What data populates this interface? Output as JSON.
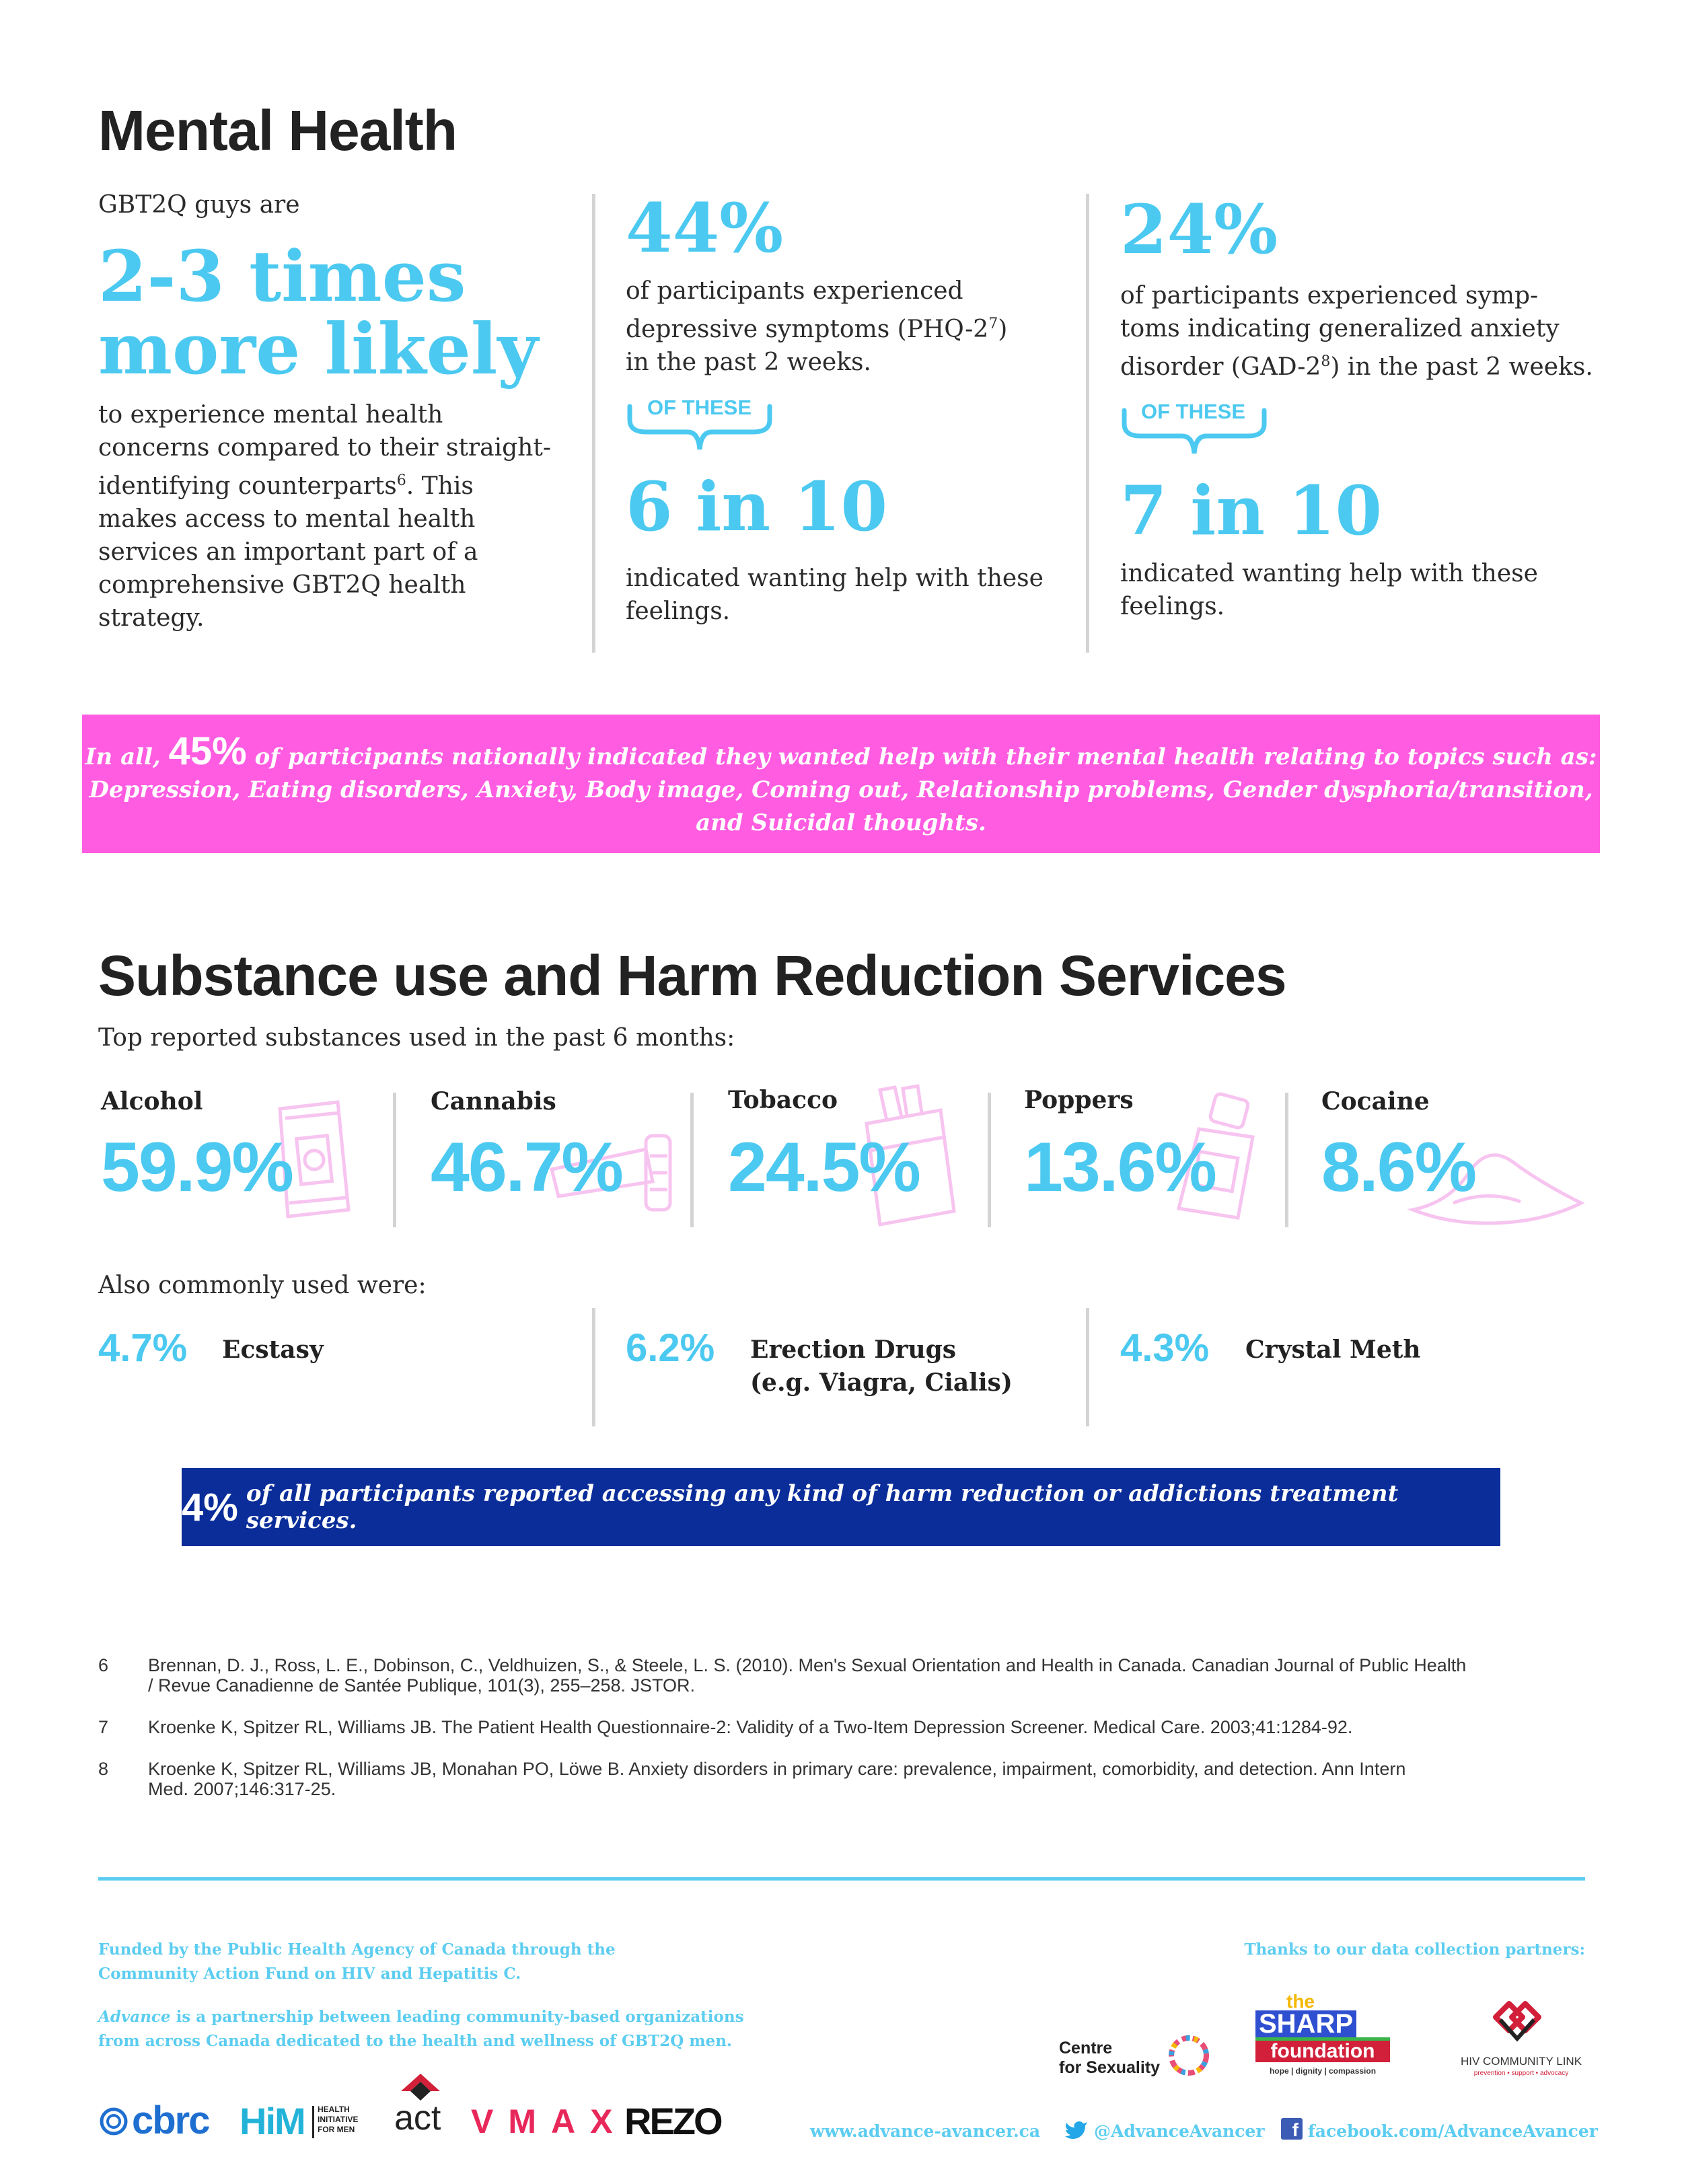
{
  "mental_health": {
    "title": "Mental Health",
    "intro": "GBT2Q guys are",
    "headline_line1": "2-3 times",
    "headline_line2": "more likely",
    "body": [
      "to experience mental health",
      "concerns compared to their straight-",
      "identifying counterparts",
      ". This",
      "makes access to mental health",
      "services an important part of a",
      "comprehensive GBT2Q health",
      "strategy."
    ],
    "body_sup": "6",
    "stat1": {
      "value": "44%",
      "lines": [
        "of participants experienced",
        "depressive symptoms (PHQ-2",
        ")",
        "in the past 2 weeks."
      ],
      "sup": "7",
      "of_these": "OF THESE",
      "ratio": "6 in 10",
      "followup": [
        "indicated wanting help with these",
        "feelings."
      ]
    },
    "stat2": {
      "value": "24%",
      "lines": [
        "of participants experienced symp-",
        "toms indicating generalized anxiety",
        "disorder (GAD-2",
        ") in the past 2 weeks."
      ],
      "sup": "8",
      "of_these": "OF THESE",
      "ratio": "7 in 10",
      "followup": [
        "indicated wanting help with these",
        "feelings."
      ]
    },
    "banner": {
      "prefix": "In all,",
      "pct": "45%",
      "line1": "of participants nationally indicated they wanted help with their mental health relating to topics such as:",
      "line2": "Depression, Eating disorders, Anxiety, Body image, Coming out, Relationship problems, Gender dysphoria/transition,",
      "line3": "and Suicidal thoughts."
    },
    "colors": {
      "pink": "#ff5ce1",
      "blue": "#4cc9f0",
      "navy": "#0a2d9a"
    }
  },
  "substance": {
    "title": "Substance use and Harm Reduction Services",
    "subtitle": "Top reported substances used in the past 6 months:",
    "items": [
      {
        "label": "Alcohol",
        "value": "59.9%",
        "icon": "drink-can-icon"
      },
      {
        "label": "Cannabis",
        "value": "46.7%",
        "icon": "joint-icon"
      },
      {
        "label": "Tobacco",
        "value": "24.5%",
        "icon": "cigarette-pack-icon"
      },
      {
        "label": "Poppers",
        "value": "13.6%",
        "icon": "poppers-bottle-icon"
      },
      {
        "label": "Cocaine",
        "value": "8.6%",
        "icon": "powder-pile-icon"
      }
    ],
    "also_title": "Also commonly used were:",
    "also": [
      {
        "value": "4.7%",
        "label": "Ecstasy",
        "label2": ""
      },
      {
        "value": "6.2%",
        "label": "Erection Drugs",
        "label2": "(e.g. Viagra, Cialis)"
      },
      {
        "value": "4.3%",
        "label": "Crystal Meth",
        "label2": ""
      }
    ],
    "banner": {
      "pct": "4%",
      "text": "of all participants reported accessing any kind of harm reduction or addictions treatment services."
    }
  },
  "references": [
    {
      "num": "6",
      "lines": [
        "Brennan, D. J., Ross, L. E., Dobinson, C., Veldhuizen, S., & Steele, L. S. (2010). Men's Sexual Orientation and Health in Canada. Canadian Journal of Public Health",
        "/ Revue Canadienne de Santée Publique, 101(3), 255–258. JSTOR."
      ]
    },
    {
      "num": "7",
      "lines": [
        "Kroenke K, Spitzer RL, Williams JB. The Patient Health Questionnaire-2: Validity of a Two-Item Depression Screener. Medical Care. 2003;41:1284-92."
      ]
    },
    {
      "num": "8",
      "lines": [
        "Kroenke K, Spitzer RL, Williams JB, Monahan PO, Löwe B. Anxiety disorders in primary care: prevalence, impairment, comorbidity, and detection. Ann Intern",
        "Med. 2007;146:317-25."
      ]
    }
  ],
  "footer": {
    "funded_line1": "Funded by the Public Health Agency of Canada through the",
    "funded_line2": "Community Action Fund on HIV and Hepatitis C.",
    "advance_word": "Advance",
    "advance_line1": " is a partnership between leading community-based organizations",
    "advance_line2": "from across Canada dedicated to the health and wellness of GBT2Q men.",
    "thanks": "Thanks to our data collection partners:",
    "website": "www.advance-avancer.ca",
    "twitter": "@AdvanceAvancer",
    "facebook": "facebook.com/AdvanceAvancer",
    "logos": {
      "cbrc": "cbrc",
      "him": "HiM",
      "him_sub1": "HEALTH",
      "him_sub2": "INITIATIVE",
      "him_sub3": "FOR MEN",
      "act": "act",
      "vmax": "VMAX",
      "rezo": "REZO",
      "centre1": "Centre",
      "centre2": "for Sexuality",
      "sharp_the": "the",
      "sharp": "SHARP",
      "sharp_foundation": "foundation",
      "sharp_tag": "hope | dignity | compassion",
      "hiv_link": "HIV COMMUNITY LINK",
      "hiv_tag": "prevention • support • advocacy"
    }
  }
}
